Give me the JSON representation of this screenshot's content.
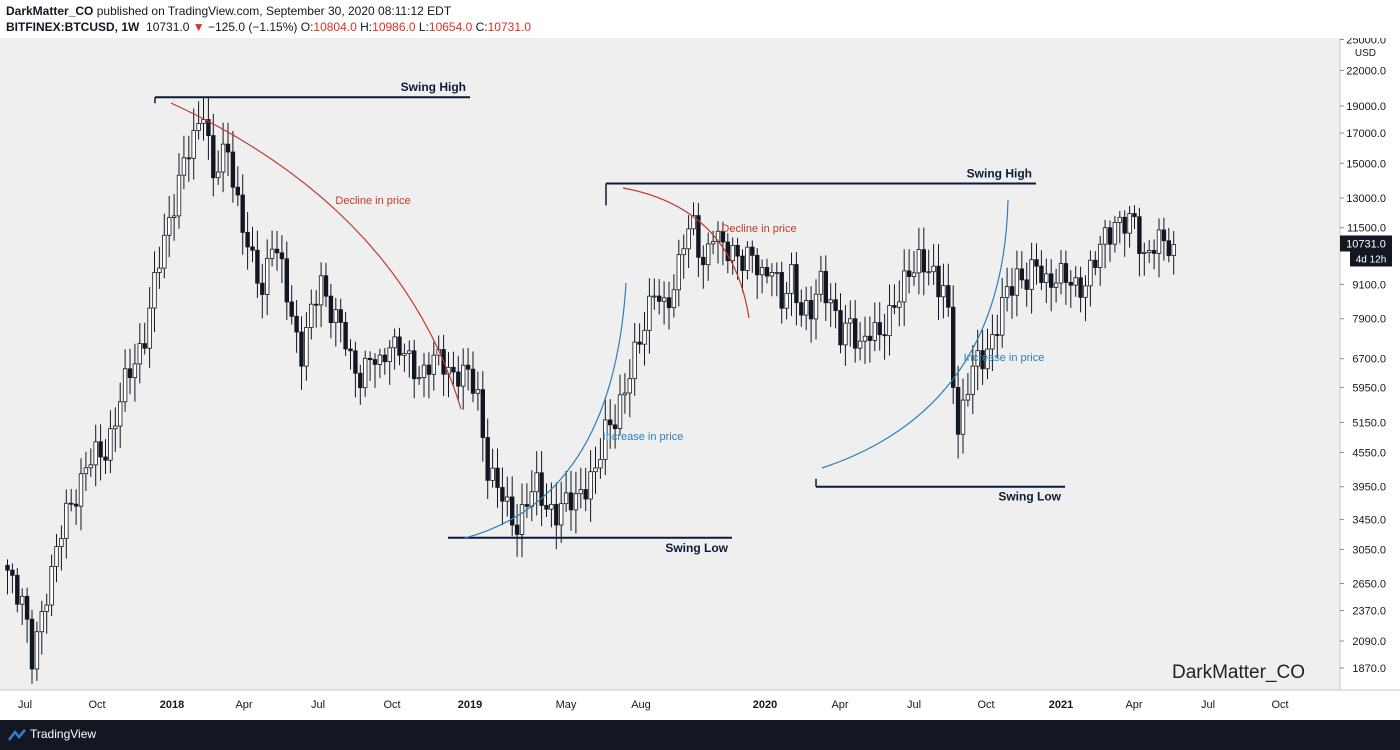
{
  "header": {
    "author": "DarkMatter_CO",
    "published_text": "published on TradingView.com, September 30, 2020 08:11:12 EDT",
    "symbol": "BITFINEX:BTCUSD, 1W",
    "last": "10731.0",
    "change": "−125.0 (−1.15%)",
    "open_label": "O:",
    "open": "10804.0",
    "high_label": "H:",
    "high": "10986.0",
    "low_label": "L:",
    "low": "10654.0",
    "close_label": "C:",
    "close": "10731.0"
  },
  "footer": {
    "brand": "TradingView",
    "icon": "tradingview-logo-icon"
  },
  "chart_data": {
    "type": "candlestick",
    "symbol": "BITFINEX:BTCUSD",
    "interval": "1W",
    "currency_label": "USD",
    "watermark": "DarkMatter_CO",
    "y_axis": {
      "scale": "log",
      "ticks": [
        25000,
        22000,
        19000,
        17000,
        15000,
        13000,
        11500,
        9100,
        7900,
        6700,
        5950,
        5150,
        4550,
        3950,
        3450,
        3050,
        2650,
        2370,
        2090,
        1870
      ],
      "tick_labels": [
        "25000.0",
        "22000.0",
        "19000.0",
        "17000.0",
        "15000.0",
        "13000.0",
        "11500.0",
        "9100.0",
        "7900.0",
        "6700.0",
        "5950.0",
        "5150.0",
        "4550.0",
        "3950.0",
        "3450.0",
        "3050.0",
        "2650.0",
        "2370.0",
        "2090.0",
        "1870.0"
      ]
    },
    "x_axis": {
      "labels": [
        "Jul",
        "Oct",
        "2018",
        "Apr",
        "Jul",
        "Oct",
        "2019",
        "May",
        "Aug",
        "2020",
        "Apr",
        "Jul",
        "Oct",
        "2021",
        "Apr",
        "Jul",
        "Oct"
      ],
      "bold_labels": [
        "2018",
        "2019",
        "2020",
        "2021"
      ]
    },
    "price_label": {
      "value": "10731.0",
      "countdown": "4d 12h"
    },
    "swing_lines": [
      {
        "label": "Swing High",
        "value": 19700
      },
      {
        "label": "Swing Low",
        "value": 3200
      },
      {
        "label": "Swing High",
        "value": 13800
      },
      {
        "label": "Swing Low",
        "value": 3950
      }
    ],
    "annotations": [
      {
        "text": "Decline in price",
        "color": "#c0392b"
      },
      {
        "text": "Increase in price",
        "color": "#2e7fb5"
      },
      {
        "text": "Decline in price",
        "color": "#c0392b"
      },
      {
        "text": "Increase in price",
        "color": "#2e7fb5"
      }
    ],
    "anchors": [
      {
        "i": 0,
        "v": 2800
      },
      {
        "i": 3,
        "v": 2500
      },
      {
        "i": 5,
        "v": 1900
      },
      {
        "i": 8,
        "v": 2600
      },
      {
        "i": 12,
        "v": 3500
      },
      {
        "i": 16,
        "v": 4300
      },
      {
        "i": 20,
        "v": 4600
      },
      {
        "i": 24,
        "v": 6000
      },
      {
        "i": 28,
        "v": 7400
      },
      {
        "i": 32,
        "v": 11000
      },
      {
        "i": 35,
        "v": 14000
      },
      {
        "i": 38,
        "v": 16500
      },
      {
        "i": 40,
        "v": 19200
      },
      {
        "i": 42,
        "v": 14000
      },
      {
        "i": 45,
        "v": 16000
      },
      {
        "i": 48,
        "v": 11500
      },
      {
        "i": 50,
        "v": 9800
      },
      {
        "i": 52,
        "v": 9000
      },
      {
        "i": 54,
        "v": 11000
      },
      {
        "i": 56,
        "v": 9500
      },
      {
        "i": 58,
        "v": 8000
      },
      {
        "i": 60,
        "v": 6900
      },
      {
        "i": 62,
        "v": 8000
      },
      {
        "i": 64,
        "v": 9200
      },
      {
        "i": 66,
        "v": 8300
      },
      {
        "i": 68,
        "v": 7600
      },
      {
        "i": 70,
        "v": 6600
      },
      {
        "i": 72,
        "v": 6300
      },
      {
        "i": 74,
        "v": 6700
      },
      {
        "i": 76,
        "v": 6400
      },
      {
        "i": 78,
        "v": 7300
      },
      {
        "i": 80,
        "v": 7000
      },
      {
        "i": 82,
        "v": 6500
      },
      {
        "i": 84,
        "v": 6300
      },
      {
        "i": 86,
        "v": 6600
      },
      {
        "i": 88,
        "v": 6600
      },
      {
        "i": 90,
        "v": 6400
      },
      {
        "i": 92,
        "v": 6350
      },
      {
        "i": 94,
        "v": 6200
      },
      {
        "i": 96,
        "v": 5700
      },
      {
        "i": 98,
        "v": 4300
      },
      {
        "i": 100,
        "v": 3900
      },
      {
        "i": 102,
        "v": 3600
      },
      {
        "i": 104,
        "v": 3400
      },
      {
        "i": 106,
        "v": 3700
      },
      {
        "i": 108,
        "v": 3950
      },
      {
        "i": 110,
        "v": 3700
      },
      {
        "i": 112,
        "v": 3500
      },
      {
        "i": 114,
        "v": 3650
      },
      {
        "i": 116,
        "v": 3850
      },
      {
        "i": 118,
        "v": 3950
      },
      {
        "i": 120,
        "v": 4100
      },
      {
        "i": 122,
        "v": 5100
      },
      {
        "i": 124,
        "v": 5300
      },
      {
        "i": 126,
        "v": 5700
      },
      {
        "i": 128,
        "v": 6900
      },
      {
        "i": 130,
        "v": 7900
      },
      {
        "i": 132,
        "v": 8700
      },
      {
        "i": 134,
        "v": 8200
      },
      {
        "i": 136,
        "v": 9200
      },
      {
        "i": 138,
        "v": 10800
      },
      {
        "i": 140,
        "v": 11500
      },
      {
        "i": 142,
        "v": 10000
      },
      {
        "i": 144,
        "v": 11300
      },
      {
        "i": 146,
        "v": 10400
      },
      {
        "i": 148,
        "v": 10600
      },
      {
        "i": 150,
        "v": 10100
      },
      {
        "i": 152,
        "v": 10000
      },
      {
        "i": 154,
        "v": 9500
      },
      {
        "i": 156,
        "v": 10000
      },
      {
        "i": 158,
        "v": 8200
      },
      {
        "i": 160,
        "v": 9500
      },
      {
        "i": 162,
        "v": 8300
      },
      {
        "i": 164,
        "v": 8000
      },
      {
        "i": 166,
        "v": 9200
      },
      {
        "i": 168,
        "v": 8700
      },
      {
        "i": 170,
        "v": 7300
      },
      {
        "i": 172,
        "v": 7600
      },
      {
        "i": 174,
        "v": 7200
      },
      {
        "i": 176,
        "v": 7500
      },
      {
        "i": 178,
        "v": 7200
      },
      {
        "i": 180,
        "v": 8200
      },
      {
        "i": 182,
        "v": 8800
      },
      {
        "i": 184,
        "v": 9300
      },
      {
        "i": 186,
        "v": 10200
      },
      {
        "i": 188,
        "v": 9900
      },
      {
        "i": 190,
        "v": 8700
      },
      {
        "i": 191,
        "v": 9000
      },
      {
        "i": 192,
        "v": 8000
      },
      {
        "i": 194,
        "v": 5000
      },
      {
        "i": 196,
        "v": 5900
      },
      {
        "i": 198,
        "v": 6700
      },
      {
        "i": 200,
        "v": 7000
      },
      {
        "i": 202,
        "v": 7600
      },
      {
        "i": 204,
        "v": 8800
      },
      {
        "i": 206,
        "v": 9600
      },
      {
        "i": 208,
        "v": 9200
      },
      {
        "i": 210,
        "v": 9700
      },
      {
        "i": 212,
        "v": 9300
      },
      {
        "i": 214,
        "v": 9400
      },
      {
        "i": 216,
        "v": 9200
      },
      {
        "i": 218,
        "v": 9100
      },
      {
        "i": 220,
        "v": 9200
      },
      {
        "i": 222,
        "v": 9900
      },
      {
        "i": 224,
        "v": 11200
      },
      {
        "i": 226,
        "v": 11800
      },
      {
        "i": 228,
        "v": 11500
      },
      {
        "i": 230,
        "v": 11800
      },
      {
        "i": 232,
        "v": 10300
      },
      {
        "i": 234,
        "v": 10600
      },
      {
        "i": 236,
        "v": 10800
      },
      {
        "i": 238,
        "v": 10731
      }
    ]
  }
}
